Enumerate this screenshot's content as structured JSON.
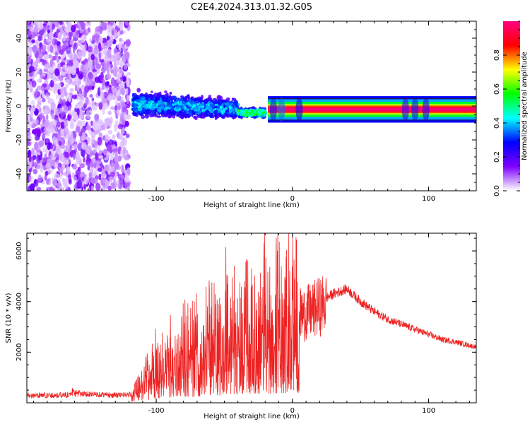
{
  "title": "C2E4.2024.313.01.32.G05",
  "colors": {
    "snr_line": "#ee2222",
    "background": "#ffffff",
    "axis": "#000000"
  },
  "chart_data": [
    {
      "type": "heatmap",
      "title": "C2E4.2024.313.01.32.G05",
      "xlabel": "Height of straight line (km)",
      "ylabel": "Frequency (Hz)",
      "xlim": [
        -195,
        135
      ],
      "ylim": [
        -50,
        50
      ],
      "xticks": [
        -100,
        0,
        100
      ],
      "yticks": [
        -40,
        -20,
        0,
        20,
        40
      ],
      "grid": false,
      "colorbar": {
        "label": "Normalized spectral amplitude",
        "range": [
          0.0,
          1.0
        ],
        "ticks": [
          0.0,
          0.2,
          0.4,
          0.6,
          0.8
        ],
        "tick_labels": [
          "0.0",
          "0.2",
          "0.4",
          "0.6",
          "0.8"
        ],
        "colormap": [
          "#ffffff",
          "#7f00ff",
          "#0000ff",
          "#00ffff",
          "#00ff00",
          "#ffff00",
          "#ff0000",
          "#ff0080"
        ]
      },
      "regions": [
        {
          "x": [
            -195,
            -120
          ],
          "freq_range": [
            -50,
            50
          ],
          "amplitude_range": [
            0.0,
            0.15
          ]
        },
        {
          "x": [
            -117,
            -40
          ],
          "freq_center": 0,
          "freq_width": 10,
          "amplitude_range": [
            0.05,
            0.45
          ]
        },
        {
          "x": [
            -40,
            -20
          ],
          "freq_center": -4,
          "freq_width": 5,
          "amplitude_range": [
            0.1,
            0.6
          ]
        },
        {
          "x": [
            -18,
            135
          ],
          "freq_center": -2,
          "freq_width": 3,
          "amplitude_range": [
            0.6,
            1.0
          ]
        }
      ]
    },
    {
      "type": "line",
      "xlabel": "Height of straight line (km)",
      "ylabel": "SNR (10 * v/v)",
      "xlim": [
        -195,
        135
      ],
      "ylim": [
        0,
        6700
      ],
      "xticks": [
        -100,
        0,
        100
      ],
      "yticks": [
        2000,
        4000,
        6000
      ],
      "grid": false,
      "series": [
        {
          "x": [
            -195,
            -170,
            -150,
            -130,
            -118,
            -110,
            -100,
            -90,
            -80,
            -70,
            -60,
            -50,
            -40,
            -30,
            -20,
            -10,
            0,
            10,
            20,
            30,
            40,
            50,
            60,
            70,
            80,
            90,
            100,
            110,
            120,
            135
          ],
          "y": [
            300,
            300,
            350,
            300,
            320,
            900,
            1500,
            1900,
            2200,
            2300,
            2600,
            3000,
            3200,
            3300,
            3300,
            3500,
            3600,
            3700,
            4000,
            4300,
            4500,
            4000,
            3600,
            3300,
            3100,
            2900,
            2700,
            2500,
            2400,
            2200
          ]
        }
      ]
    }
  ]
}
